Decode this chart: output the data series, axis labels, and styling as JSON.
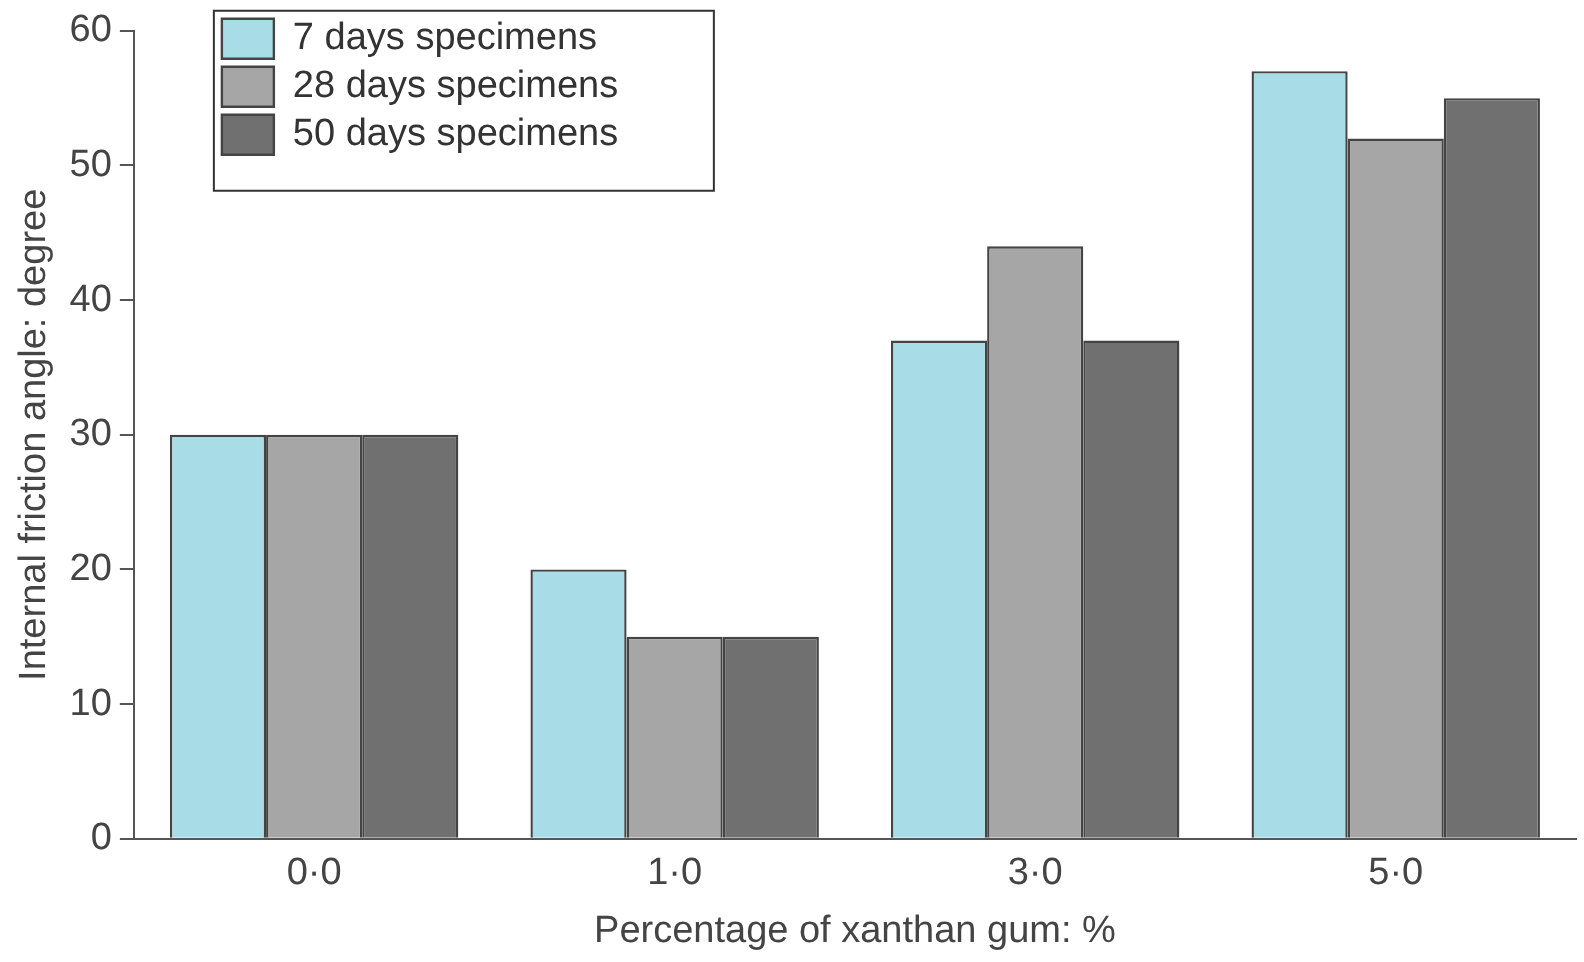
{
  "chart_data": {
    "type": "bar",
    "xlabel": "Percentage of xanthan gum: %",
    "ylabel": "Internal friction angle: degree",
    "categories": [
      "0·0",
      "1·0",
      "3·0",
      "5·0"
    ],
    "series": [
      {
        "name": "7 days specimens",
        "color": "#a8dde8",
        "values": [
          30,
          20,
          37,
          57
        ]
      },
      {
        "name": "28 days specimens",
        "color": "#a6a6a6",
        "values": [
          30,
          15,
          44,
          52
        ]
      },
      {
        "name": "50 days specimens",
        "color": "#707070",
        "values": [
          30,
          15,
          37,
          55
        ]
      }
    ],
    "ylim": [
      0,
      60
    ],
    "yticks": [
      0,
      10,
      20,
      30,
      40,
      50,
      60
    ],
    "grid": false,
    "legend": "top left"
  }
}
